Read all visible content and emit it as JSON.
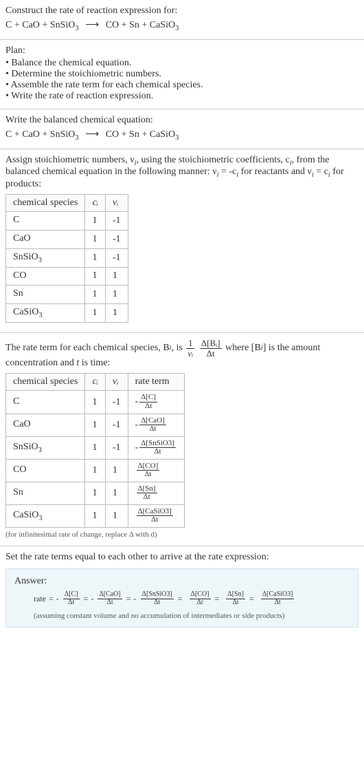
{
  "header": {
    "title": "Construct the rate of reaction expression for:",
    "reactants": "C + CaO + SnSiO",
    "reactants_sub": "3",
    "products_a": "CO + Sn + CaSiO",
    "products_sub": "3"
  },
  "plan": {
    "title": "Plan:",
    "items": [
      "• Balance the chemical equation.",
      "• Determine the stoichiometric numbers.",
      "• Assemble the rate term for each chemical species.",
      "• Write the rate of reaction expression."
    ]
  },
  "balanced": {
    "title": "Write the balanced chemical equation:",
    "reactants": "C + CaO + SnSiO",
    "reactants_sub": "3",
    "products_a": "CO + Sn + CaSiO",
    "products_sub": "3"
  },
  "stoich": {
    "intro_a": "Assign stoichiometric numbers, ν",
    "intro_b": ", using the stoichiometric coefficients, c",
    "intro_c": ", from the balanced chemical equation in the following manner: ν",
    "intro_d": " = -c",
    "intro_e": " for reactants and ν",
    "intro_f": " = c",
    "intro_g": " for products:",
    "sub_i": "i",
    "cols": {
      "species": "chemical species",
      "c": "cᵢ",
      "v": "νᵢ"
    },
    "rows": [
      {
        "species": "C",
        "sub": "",
        "c": "1",
        "v": "-1"
      },
      {
        "species": "CaO",
        "sub": "",
        "c": "1",
        "v": "-1"
      },
      {
        "species": "SnSiO",
        "sub": "3",
        "c": "1",
        "v": "-1"
      },
      {
        "species": "CO",
        "sub": "",
        "c": "1",
        "v": "1"
      },
      {
        "species": "Sn",
        "sub": "",
        "c": "1",
        "v": "1"
      },
      {
        "species": "CaSiO",
        "sub": "3",
        "c": "1",
        "v": "1"
      }
    ]
  },
  "rate_terms": {
    "intro_a": "The rate term for each chemical species, B",
    "intro_b": ", is ",
    "intro_c": " where [B",
    "intro_d": "] is the amount concentration and ",
    "intro_e": " is time:",
    "t_label": "t",
    "sub_i": "i",
    "frac1_num": "1",
    "frac1_den": "νᵢ",
    "frac2_num": "Δ[Bᵢ]",
    "frac2_den": "Δt",
    "cols": {
      "species": "chemical species",
      "c": "cᵢ",
      "v": "νᵢ",
      "rate": "rate term"
    },
    "rows": [
      {
        "species": "C",
        "sub": "",
        "c": "1",
        "v": "-1",
        "sign": "-",
        "num": "Δ[C]",
        "den": "Δt"
      },
      {
        "species": "CaO",
        "sub": "",
        "c": "1",
        "v": "-1",
        "sign": "-",
        "num": "Δ[CaO]",
        "den": "Δt"
      },
      {
        "species": "SnSiO",
        "sub": "3",
        "c": "1",
        "v": "-1",
        "sign": "-",
        "num": "Δ[SnSiO3]",
        "den": "Δt"
      },
      {
        "species": "CO",
        "sub": "",
        "c": "1",
        "v": "1",
        "sign": "",
        "num": "Δ[CO]",
        "den": "Δt"
      },
      {
        "species": "Sn",
        "sub": "",
        "c": "1",
        "v": "1",
        "sign": "",
        "num": "Δ[Sn]",
        "den": "Δt"
      },
      {
        "species": "CaSiO",
        "sub": "3",
        "c": "1",
        "v": "1",
        "sign": "",
        "num": "Δ[CaSiO3]",
        "den": "Δt"
      }
    ],
    "footnote": "(for infinitesimal rate of change, replace Δ with d)"
  },
  "final": {
    "intro": "Set the rate terms equal to each other to arrive at the rate expression:",
    "answer_label": "Answer:",
    "rate_label": "rate",
    "eq": "=",
    "dt": "Δt",
    "terms": [
      {
        "sign": "-",
        "num": "Δ[C]"
      },
      {
        "sign": "-",
        "num": "Δ[CaO]"
      },
      {
        "sign": "-",
        "num": "Δ[SnSiO3]"
      },
      {
        "sign": "",
        "num": "Δ[CO]"
      },
      {
        "sign": "",
        "num": "Δ[Sn]"
      },
      {
        "sign": "",
        "num": "Δ[CaSiO3]"
      }
    ],
    "assumption": "(assuming constant volume and no accumulation of intermediates or side products)"
  }
}
